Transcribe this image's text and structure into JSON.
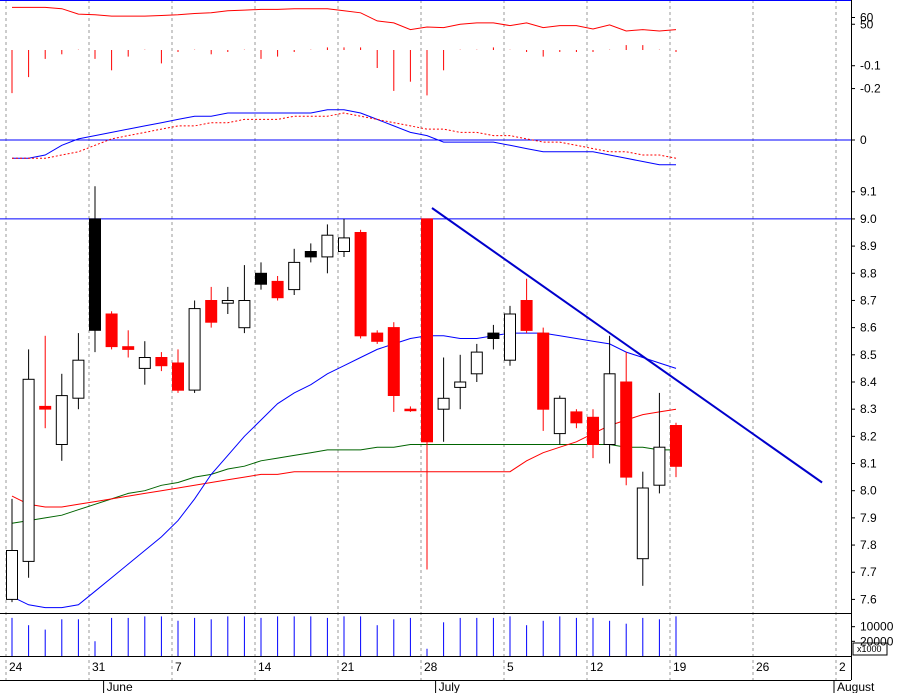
{
  "chart_data": {
    "type": "candlestick",
    "colors": {
      "up_body": "#ffffff",
      "down_body_red": "#ff0000",
      "down_body_black": "#000000",
      "ma_fast": "#0000ff",
      "ma_mid": "#ff0000",
      "ma_slow": "#006400",
      "trendline": "#0000cc",
      "volume": "#0000ff",
      "hlines": "#0000ff"
    },
    "candles": [
      {
        "o": 7.6,
        "h": 7.97,
        "l": 7.59,
        "c": 7.78,
        "color": "up"
      },
      {
        "o": 7.74,
        "h": 8.52,
        "l": 7.68,
        "c": 8.41,
        "color": "up"
      },
      {
        "o": 8.31,
        "h": 8.57,
        "l": 8.23,
        "c": 8.3,
        "color": "red"
      },
      {
        "o": 8.17,
        "h": 8.43,
        "l": 8.11,
        "c": 8.35,
        "color": "up"
      },
      {
        "o": 8.34,
        "h": 8.58,
        "l": 8.3,
        "c": 8.48,
        "color": "up"
      },
      {
        "o": 9.0,
        "h": 9.12,
        "l": 8.51,
        "c": 8.59,
        "color": "black"
      },
      {
        "o": 8.65,
        "h": 8.66,
        "l": 8.52,
        "c": 8.53,
        "color": "red"
      },
      {
        "o": 8.53,
        "h": 8.59,
        "l": 8.49,
        "c": 8.52,
        "color": "red"
      },
      {
        "o": 8.45,
        "h": 8.55,
        "l": 8.39,
        "c": 8.49,
        "color": "up"
      },
      {
        "o": 8.49,
        "h": 8.51,
        "l": 8.44,
        "c": 8.46,
        "color": "red"
      },
      {
        "o": 8.47,
        "h": 8.52,
        "l": 8.36,
        "c": 8.37,
        "color": "red"
      },
      {
        "o": 8.37,
        "h": 8.7,
        "l": 8.36,
        "c": 8.67,
        "color": "up"
      },
      {
        "o": 8.7,
        "h": 8.75,
        "l": 8.6,
        "c": 8.62,
        "color": "red"
      },
      {
        "o": 8.69,
        "h": 8.75,
        "l": 8.65,
        "c": 8.7,
        "color": "up"
      },
      {
        "o": 8.6,
        "h": 8.83,
        "l": 8.58,
        "c": 8.7,
        "color": "up"
      },
      {
        "o": 8.8,
        "h": 8.84,
        "l": 8.74,
        "c": 8.76,
        "color": "black"
      },
      {
        "o": 8.77,
        "h": 8.79,
        "l": 8.7,
        "c": 8.71,
        "color": "red"
      },
      {
        "o": 8.74,
        "h": 8.89,
        "l": 8.72,
        "c": 8.84,
        "color": "up"
      },
      {
        "o": 8.88,
        "h": 8.91,
        "l": 8.84,
        "c": 8.86,
        "color": "black"
      },
      {
        "o": 8.86,
        "h": 8.98,
        "l": 8.8,
        "c": 8.94,
        "color": "up"
      },
      {
        "o": 8.88,
        "h": 9.0,
        "l": 8.86,
        "c": 8.93,
        "color": "up"
      },
      {
        "o": 8.95,
        "h": 8.96,
        "l": 8.56,
        "c": 8.57,
        "color": "red"
      },
      {
        "o": 8.58,
        "h": 8.59,
        "l": 8.54,
        "c": 8.55,
        "color": "red"
      },
      {
        "o": 8.6,
        "h": 8.62,
        "l": 8.29,
        "c": 8.35,
        "color": "red"
      },
      {
        "o": 8.3,
        "h": 8.31,
        "l": 8.29,
        "c": 8.3,
        "color": "red"
      },
      {
        "o": 9.0,
        "h": 9.0,
        "l": 7.71,
        "c": 8.18,
        "color": "red"
      },
      {
        "o": 8.3,
        "h": 8.49,
        "l": 8.18,
        "c": 8.34,
        "color": "up"
      },
      {
        "o": 8.38,
        "h": 8.5,
        "l": 8.3,
        "c": 8.4,
        "color": "up"
      },
      {
        "o": 8.43,
        "h": 8.54,
        "l": 8.4,
        "c": 8.51,
        "color": "up"
      },
      {
        "o": 8.58,
        "h": 8.61,
        "l": 8.52,
        "c": 8.56,
        "color": "black"
      },
      {
        "o": 8.48,
        "h": 8.68,
        "l": 8.46,
        "c": 8.65,
        "color": "up"
      },
      {
        "o": 8.7,
        "h": 8.78,
        "l": 8.58,
        "c": 8.59,
        "color": "red"
      },
      {
        "o": 8.58,
        "h": 8.6,
        "l": 8.22,
        "c": 8.3,
        "color": "red"
      },
      {
        "o": 8.21,
        "h": 8.35,
        "l": 8.17,
        "c": 8.34,
        "color": "up"
      },
      {
        "o": 8.29,
        "h": 8.3,
        "l": 8.23,
        "c": 8.25,
        "color": "red"
      },
      {
        "o": 8.27,
        "h": 8.3,
        "l": 8.12,
        "c": 8.17,
        "color": "red"
      },
      {
        "o": 8.17,
        "h": 8.57,
        "l": 8.1,
        "c": 8.43,
        "color": "up"
      },
      {
        "o": 8.4,
        "h": 8.51,
        "l": 8.02,
        "c": 8.05,
        "color": "red"
      },
      {
        "o": 7.75,
        "h": 8.07,
        "l": 7.65,
        "c": 8.01,
        "color": "up"
      },
      {
        "o": 8.02,
        "h": 8.36,
        "l": 7.99,
        "c": 8.16,
        "color": "up"
      },
      {
        "o": 8.24,
        "h": 8.25,
        "l": 8.05,
        "c": 8.09,
        "color": "red"
      }
    ],
    "ma_fast": [
      7.61,
      7.58,
      7.57,
      7.57,
      7.58,
      7.63,
      7.68,
      7.73,
      7.78,
      7.83,
      7.89,
      7.97,
      8.06,
      8.13,
      8.2,
      8.26,
      8.32,
      8.36,
      8.39,
      8.43,
      8.46,
      8.49,
      8.52,
      8.54,
      8.56,
      8.57,
      8.57,
      8.56,
      8.56,
      8.57,
      8.58,
      8.58,
      8.58,
      8.57,
      8.56,
      8.55,
      8.54,
      8.51,
      8.49,
      8.47,
      8.45
    ],
    "ma_mid": [
      7.98,
      7.95,
      7.94,
      7.94,
      7.95,
      7.96,
      7.97,
      7.98,
      7.99,
      8.0,
      8.01,
      8.02,
      8.03,
      8.04,
      8.05,
      8.06,
      8.06,
      8.07,
      8.07,
      8.07,
      8.07,
      8.07,
      8.07,
      8.07,
      8.07,
      8.07,
      8.07,
      8.07,
      8.07,
      8.07,
      8.07,
      8.11,
      8.14,
      8.16,
      8.18,
      8.21,
      8.24,
      8.26,
      8.28,
      8.29,
      8.3
    ],
    "ma_slow": [
      7.88,
      7.89,
      7.9,
      7.91,
      7.93,
      7.95,
      7.97,
      7.99,
      8.0,
      8.02,
      8.03,
      8.05,
      8.06,
      8.08,
      8.09,
      8.11,
      8.12,
      8.13,
      8.14,
      8.15,
      8.15,
      8.15,
      8.16,
      8.16,
      8.17,
      8.17,
      8.17,
      8.17,
      8.17,
      8.17,
      8.17,
      8.17,
      8.17,
      8.17,
      8.17,
      8.17,
      8.17,
      8.16,
      8.16,
      8.15,
      8.15
    ],
    "trendline": {
      "from": {
        "i": 25.3,
        "v": 9.04
      },
      "to": {
        "i": 48.8,
        "v": 8.03
      }
    },
    "hline_price": 9.0,
    "price_ylim": [
      7.55,
      9.18
    ],
    "price_ticks": [
      "9.1",
      "9.0",
      "8.9",
      "8.8",
      "8.7",
      "8.6",
      "8.5",
      "8.4",
      "8.3",
      "8.2",
      "8.1",
      "8.0",
      "7.9",
      "7.8",
      "7.7",
      "7.6"
    ],
    "osc_line": [
      75,
      75,
      75,
      73,
      65,
      64,
      62,
      62,
      62,
      63,
      64,
      66,
      67,
      70,
      71,
      72,
      72,
      73,
      73,
      73,
      70,
      67,
      55,
      52,
      42,
      46,
      45,
      50,
      52,
      52,
      48,
      52,
      45,
      48,
      48,
      43,
      49,
      40,
      42,
      40,
      42
    ],
    "osc_ylim": [
      0,
      80
    ],
    "osc_ticks": [
      "60",
      "50"
    ],
    "hist_bars": [
      -0.22,
      -0.15,
      -0.07,
      -0.05,
      -0.03,
      -0.07,
      -0.12,
      -0.06,
      -0.03,
      -0.09,
      -0.04,
      -0.03,
      -0.05,
      -0.04,
      -0.03,
      -0.07,
      -0.06,
      -0.04,
      -0.03,
      -0.02,
      -0.02,
      -0.02,
      -0.11,
      -0.21,
      -0.17,
      -0.23,
      -0.12,
      -0.03,
      -0.03,
      -0.02,
      -0.03,
      -0.04,
      -0.06,
      -0.04,
      -0.04,
      -0.04,
      -0.03,
      -0.01,
      -0.01,
      -0.03,
      -0.04
    ],
    "hist_ylim": [
      -0.25,
      0.03
    ],
    "hist_ticks": [
      "-0.1",
      "-0.2"
    ],
    "macd_line": [
      -0.02,
      -0.02,
      -0.01,
      0.02,
      0.04,
      0.05,
      0.06,
      0.07,
      0.08,
      0.09,
      0.1,
      0.11,
      0.11,
      0.12,
      0.12,
      0.12,
      0.12,
      0.12,
      0.12,
      0.13,
      0.13,
      0.12,
      0.1,
      0.08,
      0.06,
      0.05,
      0.03,
      0.03,
      0.03,
      0.03,
      0.02,
      0.01,
      0.0,
      0.0,
      0.0,
      0.0,
      -0.01,
      -0.02,
      -0.03,
      -0.04,
      -0.04
    ],
    "macd_signal": [
      -0.02,
      -0.02,
      -0.02,
      -0.01,
      0.0,
      0.02,
      0.04,
      0.05,
      0.06,
      0.07,
      0.08,
      0.08,
      0.09,
      0.09,
      0.1,
      0.1,
      0.1,
      0.11,
      0.11,
      0.11,
      0.12,
      0.11,
      0.1,
      0.09,
      0.08,
      0.07,
      0.07,
      0.06,
      0.06,
      0.05,
      0.05,
      0.04,
      0.03,
      0.03,
      0.02,
      0.01,
      0.0,
      0.0,
      -0.01,
      -0.01,
      -0.02
    ],
    "macd_ylim": [
      -0.05,
      0.16
    ],
    "macd_ticks": [
      "0"
    ],
    "volume": [
      4,
      9,
      12,
      5,
      5,
      20,
      4,
      4,
      3,
      3,
      6,
      4,
      5,
      3,
      3,
      4,
      3,
      3,
      3,
      4,
      3,
      3,
      9,
      5,
      4,
      25,
      7,
      4,
      4,
      4,
      3,
      9,
      6,
      3,
      4,
      4,
      6,
      8,
      4,
      5,
      3
    ],
    "volume_ylim": [
      0,
      30
    ],
    "volume_ticks": [
      "20000",
      "10000"
    ],
    "volume_scale_note": "x1000",
    "x_ticks": [
      {
        "label": "24",
        "i": 0
      },
      {
        "label": "31",
        "i": 5
      },
      {
        "label": "7",
        "i": 10
      },
      {
        "label": "14",
        "i": 15
      },
      {
        "label": "21",
        "i": 20
      },
      {
        "label": "28",
        "i": 25
      },
      {
        "label": "5",
        "i": 30
      },
      {
        "label": "12",
        "i": 35
      },
      {
        "label": "19",
        "i": 40
      },
      {
        "label": "26",
        "i": 45
      },
      {
        "label": "2",
        "i": 50
      }
    ],
    "months": [
      {
        "label": "June",
        "i": 6
      },
      {
        "label": "July",
        "i": 26
      },
      {
        "label": "August",
        "i": 50
      }
    ]
  }
}
